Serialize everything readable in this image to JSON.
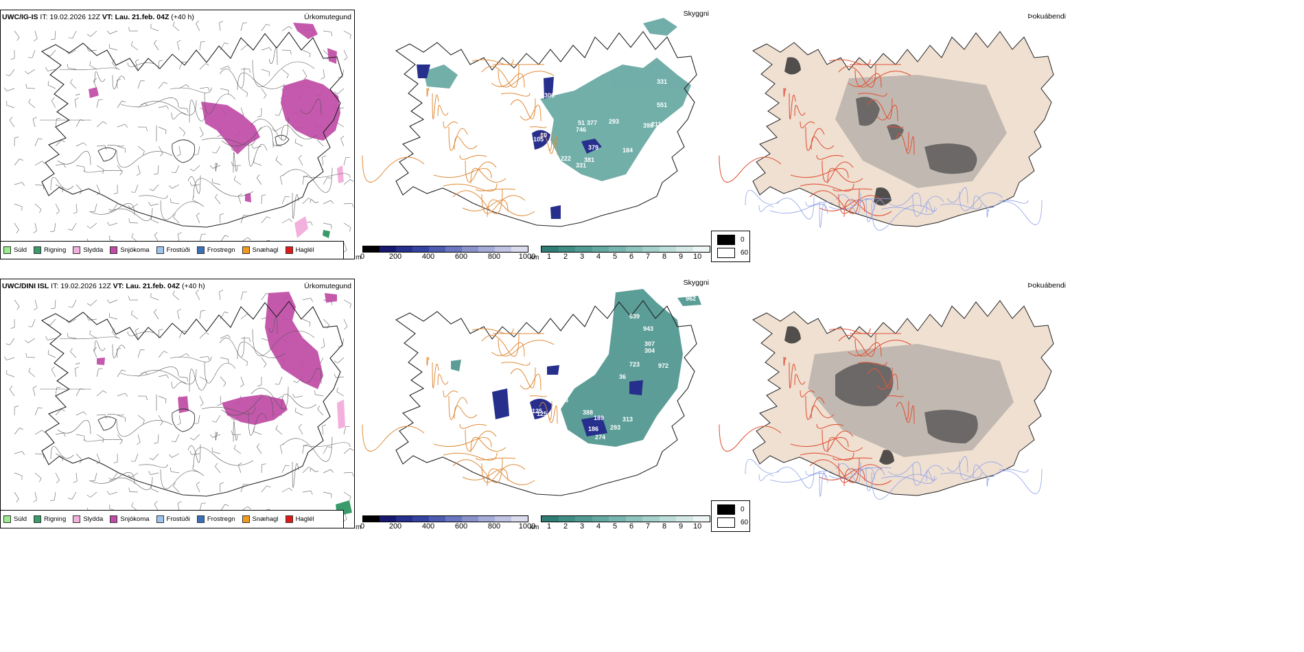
{
  "forecast": {
    "init_label": "IT:",
    "init_time": "19.02.2026 12Z",
    "valid_label": "VT:",
    "valid_time": "Lau. 21.feb. 04Z",
    "lead": "(+40 h)"
  },
  "rows": [
    {
      "model": "UWC/IG-IS"
    },
    {
      "model": "UWC/DINI ISL"
    }
  ],
  "panel_titles": {
    "precip_type": "Úrkomutegund",
    "visibility": "Skyggni",
    "fog": "Þokuábendi"
  },
  "precip_legend": [
    {
      "label": "Súld",
      "color": "#98ec8c"
    },
    {
      "label": "Rigning",
      "color": "#3a9a6a"
    },
    {
      "label": "Slydda",
      "color": "#f4b0dc"
    },
    {
      "label": "Snjókoma",
      "color": "#bf4ba6"
    },
    {
      "label": "Frostúði",
      "color": "#9cc4ee"
    },
    {
      "label": "Frostregn",
      "color": "#3a70b8"
    },
    {
      "label": "Snæhagl",
      "color": "#f09a1e"
    },
    {
      "label": "Haglél",
      "color": "#e01818"
    }
  ],
  "cloudbase_scale": {
    "unit": "m",
    "ticks": [
      "0",
      "200",
      "400",
      "600",
      "800",
      "1000"
    ],
    "colors": [
      "#000000",
      "#18186e",
      "#262f8c",
      "#3443a0",
      "#4d5cb0",
      "#6a76c0",
      "#8a92cc",
      "#a6acd8",
      "#c0c4e2",
      "#dadcee"
    ]
  },
  "visibility_scale": {
    "unit": "km",
    "ticks": [
      "1",
      "2",
      "3",
      "4",
      "5",
      "6",
      "7",
      "8",
      "9",
      "10"
    ],
    "colors": [
      "#2e7e76",
      "#3f8d85",
      "#519b94",
      "#64a8a2",
      "#79b5b0",
      "#8ec3be",
      "#a5d0cc",
      "#bcddd9",
      "#d4e9e6",
      "#eef6f5"
    ]
  },
  "fog_scale": {
    "high": "0",
    "low": "60"
  },
  "map_labels": {
    "top": [
      "105",
      "306",
      "331",
      "551",
      "746",
      "377",
      "293",
      "222",
      "379",
      "331",
      "51",
      "10",
      "398",
      "211",
      "381",
      "184"
    ],
    "bottom": [
      "639",
      "943",
      "307",
      "304",
      "723",
      "972",
      "125",
      "895",
      "388",
      "189",
      "186",
      "313",
      "293",
      "274",
      "962",
      "125",
      "36"
    ]
  }
}
